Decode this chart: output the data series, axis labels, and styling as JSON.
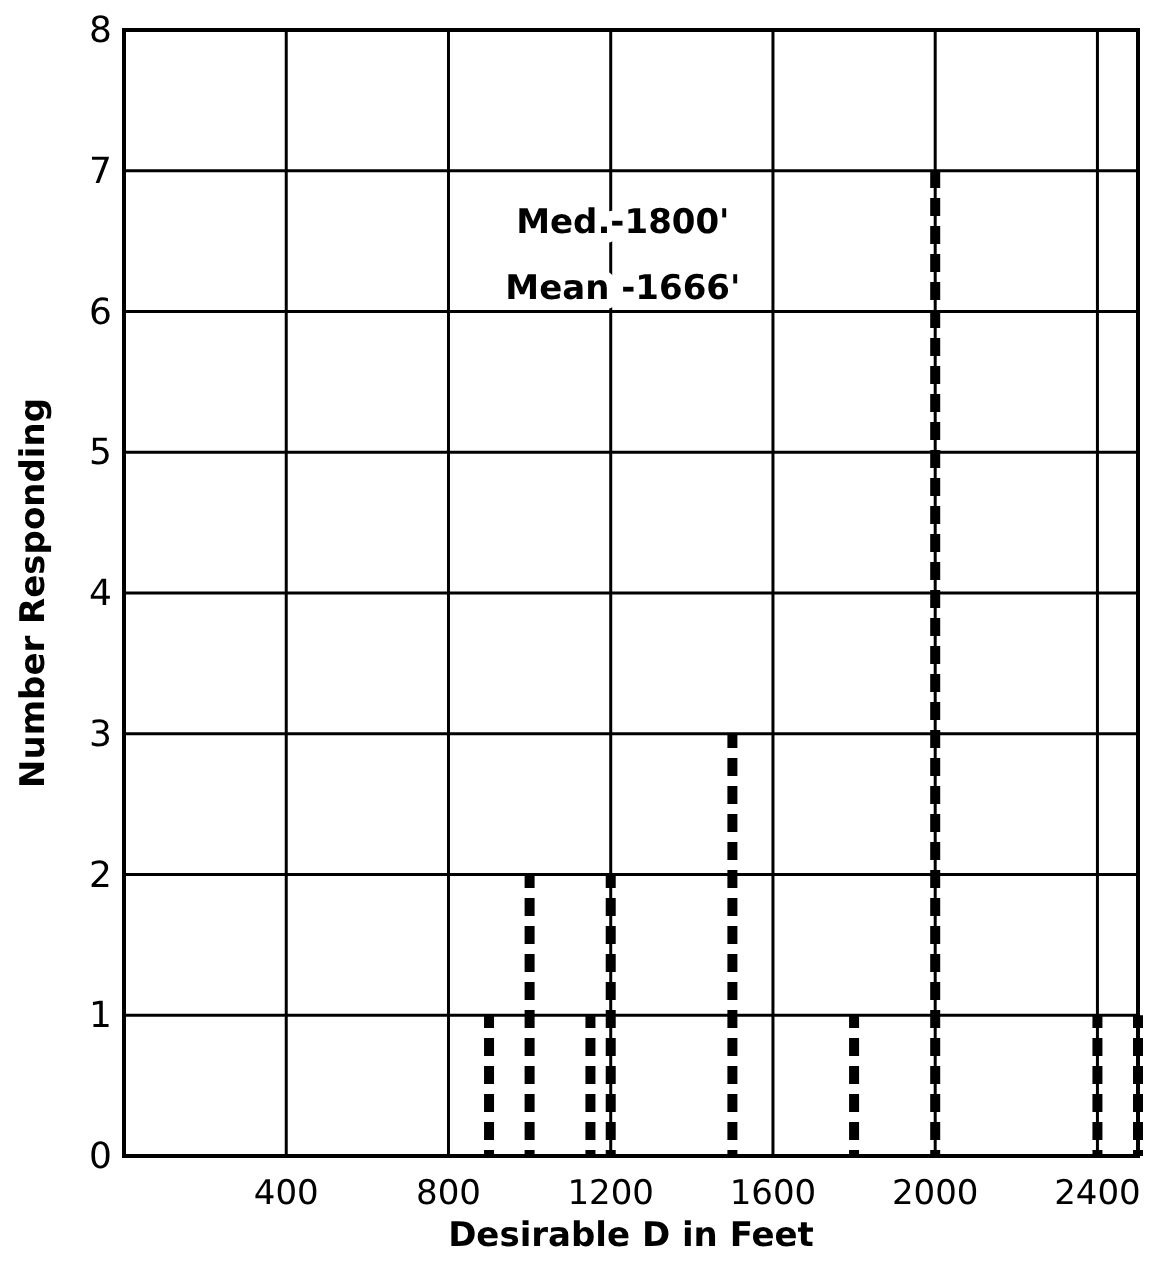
{
  "chart_data": {
    "type": "bar",
    "xlabel": "Desirable D in Feet",
    "ylabel": "Number Responding",
    "x": [
      900,
      1000,
      1150,
      1200,
      1500,
      1800,
      2000,
      2400,
      2500
    ],
    "values": [
      1,
      2,
      1,
      2,
      3,
      1,
      7,
      1,
      1
    ],
    "color": "#000000",
    "line_style": "dashed",
    "xlim": [
      0,
      2500
    ],
    "xticks": [
      400,
      800,
      1200,
      1600,
      2000,
      2400
    ],
    "ylim": [
      0,
      8
    ],
    "yticks": [
      0,
      1,
      2,
      3,
      4,
      5,
      6,
      7,
      8
    ],
    "grid": true,
    "annotations": [
      "Med.-1800'",
      "Mean -1666'"
    ]
  }
}
